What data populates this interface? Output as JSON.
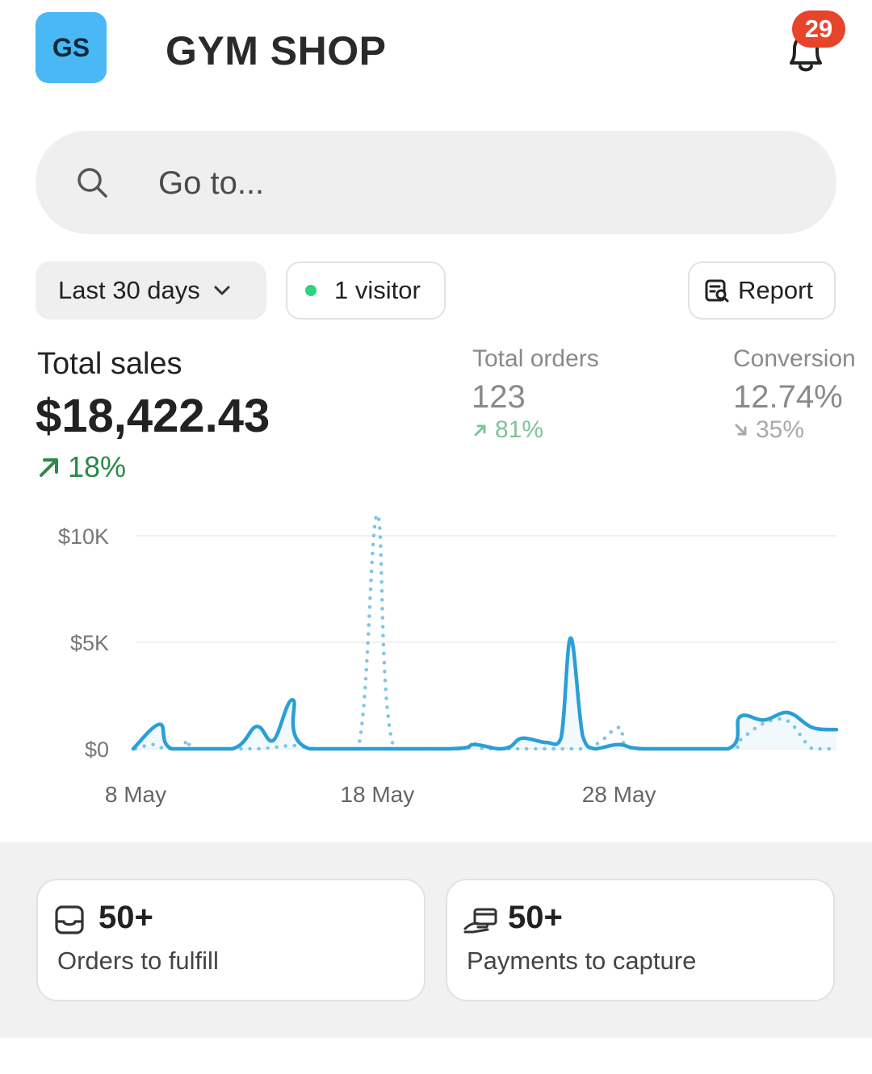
{
  "header": {
    "avatar_initials": "GS",
    "shop_name": "GYM SHOP",
    "notification_count": "29",
    "bell_icon": "bell-icon"
  },
  "search": {
    "placeholder": "Go to...",
    "icon": "search-icon"
  },
  "filters": {
    "date_range": "Last 30 days",
    "visitors": "1 visitor",
    "report": "Report",
    "live_color": "#2fd47a"
  },
  "metrics": {
    "total_sales": {
      "label": "Total sales",
      "value": "$18,422.43",
      "delta": "18%",
      "trend": "up"
    },
    "total_orders": {
      "label": "Total orders",
      "value": "123",
      "delta": "81%",
      "trend": "up"
    },
    "conversion": {
      "label": "Conversion",
      "value": "12.74%",
      "delta": "35%",
      "trend": "down"
    }
  },
  "chart_data": {
    "type": "line",
    "y_ticks": [
      "$10K",
      "$5K",
      "$0"
    ],
    "ylim": [
      0,
      10000
    ],
    "x_tick_labels": [
      "8 May",
      "18 May",
      "28 May"
    ],
    "x_ticks_day_index": [
      0,
      10,
      20
    ],
    "grid": true,
    "series": [
      {
        "style": "solid",
        "color": "#2a9fd6",
        "points": [
          [
            -0.1,
            0
          ],
          [
            1,
            1150
          ],
          [
            1.5,
            0
          ],
          [
            4,
            0
          ],
          [
            5,
            1050
          ],
          [
            5.7,
            400
          ],
          [
            6.5,
            2300
          ],
          [
            7.2,
            0
          ],
          [
            13,
            0
          ],
          [
            14,
            200
          ],
          [
            15,
            0
          ],
          [
            15.5,
            100
          ],
          [
            16,
            500
          ],
          [
            17,
            300
          ],
          [
            17.6,
            500
          ],
          [
            18,
            5200
          ],
          [
            18.5,
            600
          ],
          [
            19,
            0
          ],
          [
            20,
            200
          ],
          [
            21,
            0
          ],
          [
            24.5,
            0
          ],
          [
            25,
            1500
          ],
          [
            26,
            1350
          ],
          [
            27,
            1700
          ],
          [
            28,
            1000
          ],
          [
            29,
            900
          ]
        ]
      },
      {
        "style": "dotted",
        "color": "#7ec5e4",
        "points": [
          [
            0,
            0
          ],
          [
            0.7,
            200
          ],
          [
            1.2,
            0
          ],
          [
            1.8,
            0
          ],
          [
            2.2,
            400
          ],
          [
            2.5,
            0
          ],
          [
            5,
            0
          ],
          [
            6.5,
            150
          ],
          [
            7.5,
            0
          ],
          [
            9.2,
            0
          ],
          [
            10,
            11000
          ],
          [
            10.7,
            0
          ],
          [
            13.5,
            0
          ],
          [
            14,
            250
          ],
          [
            14.6,
            0
          ],
          [
            18.5,
            0
          ],
          [
            20,
            1000
          ],
          [
            20.6,
            0
          ],
          [
            24.5,
            0
          ],
          [
            25,
            400
          ],
          [
            26,
            1200
          ],
          [
            27,
            1300
          ],
          [
            28,
            0
          ],
          [
            29,
            0
          ]
        ]
      }
    ]
  },
  "tasks": [
    {
      "value": "50+",
      "label": "Orders to fulfill",
      "icon": "inbox-icon"
    },
    {
      "value": "50+",
      "label": "Payments to capture",
      "icon": "payment-hand-icon"
    }
  ]
}
